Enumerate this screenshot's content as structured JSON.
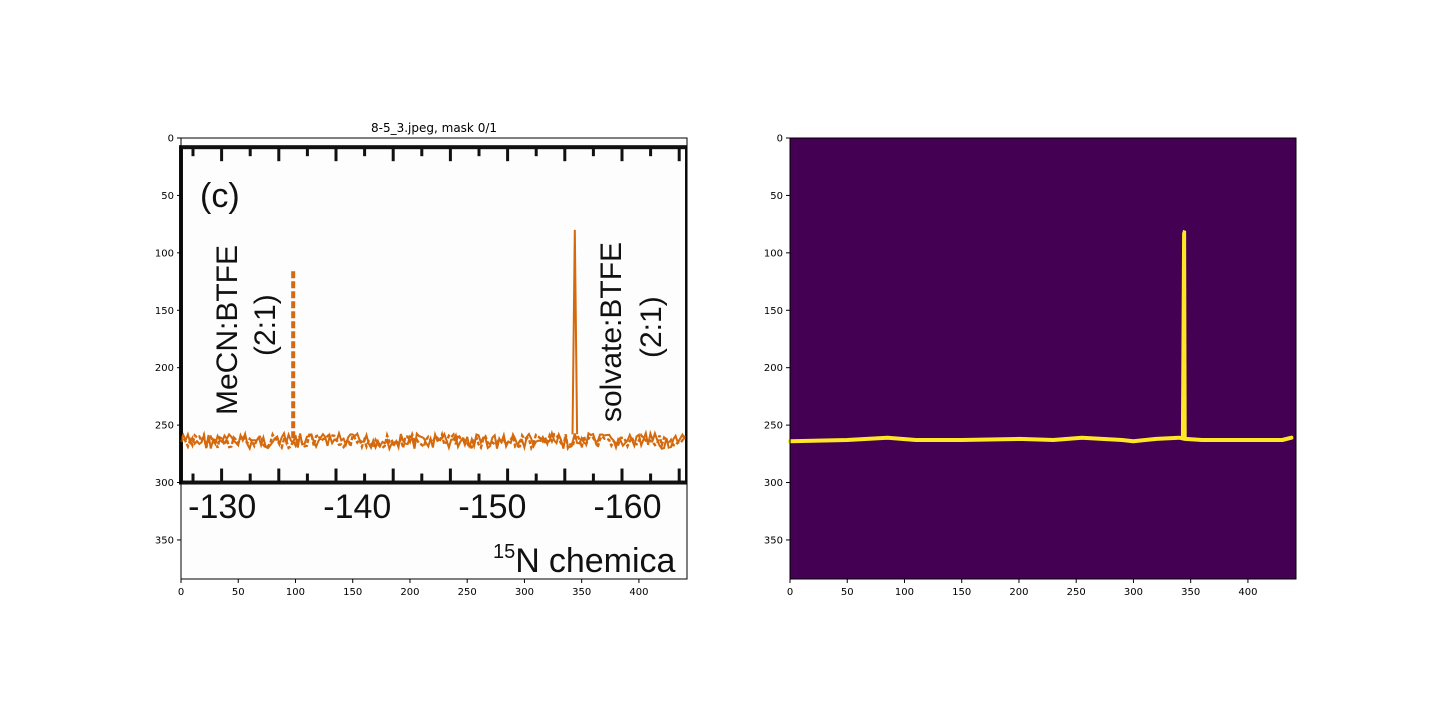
{
  "figure": {
    "left_panel": {
      "title": "8-5_3.jpeg, mask 0/1",
      "image_content": {
        "panel_label": "(c)",
        "spectrum_xticks": [
          "-130",
          "-140",
          "-150",
          "-160"
        ],
        "xaxis_label_visible": "chemica",
        "xaxis_label_superscript": "15",
        "xaxis_label_prefix": "N",
        "label_left_line1": "MeCN:BTFE",
        "label_left_line2": "(2:1)",
        "label_right_line1": "solvate:BTFE",
        "label_right_line2": "(2:1)",
        "trace_color": "#D4690D"
      }
    },
    "right_panel": {
      "title": "",
      "background_color": "#440154",
      "mask_color": "#FDE725"
    }
  },
  "chart_data": [
    {
      "type": "heatmap",
      "title": "8-5_3.jpeg, mask 0/1",
      "xlim": [
        0,
        442
      ],
      "ylim": [
        384,
        0
      ],
      "xticks": [
        0,
        50,
        100,
        150,
        200,
        250,
        300,
        350,
        400
      ],
      "yticks": [
        0,
        50,
        100,
        150,
        200,
        250,
        300,
        350
      ],
      "grid": false,
      "content": "rgb image",
      "features": {
        "spectrum_frame_x": [
          0,
          442
        ],
        "spectrum_frame_y": [
          8,
          300
        ],
        "baseline_y": 264,
        "dashed_peak": {
          "x": 98,
          "top_y": 116
        },
        "solid_peak": {
          "x": 344,
          "top_y": 80
        }
      }
    },
    {
      "type": "heatmap",
      "title": "",
      "xlim": [
        0,
        442
      ],
      "ylim": [
        384,
        0
      ],
      "xticks": [
        0,
        50,
        100,
        150,
        200,
        250,
        300,
        350,
        400
      ],
      "yticks": [
        0,
        50,
        100,
        150,
        200,
        250,
        300,
        350
      ],
      "grid": false,
      "content": "binary mask",
      "mask_baseline_x": [
        0,
        50,
        85,
        110,
        150,
        200,
        230,
        255,
        290,
        300,
        320,
        340,
        345,
        360,
        400,
        430,
        438
      ],
      "mask_baseline_y": [
        264,
        263,
        261,
        263,
        263,
        262,
        263,
        261,
        263,
        264,
        262,
        261,
        262,
        263,
        263,
        263,
        261
      ],
      "mask_peak": {
        "x": 344,
        "top_y": 80,
        "base_y": 261
      }
    }
  ]
}
